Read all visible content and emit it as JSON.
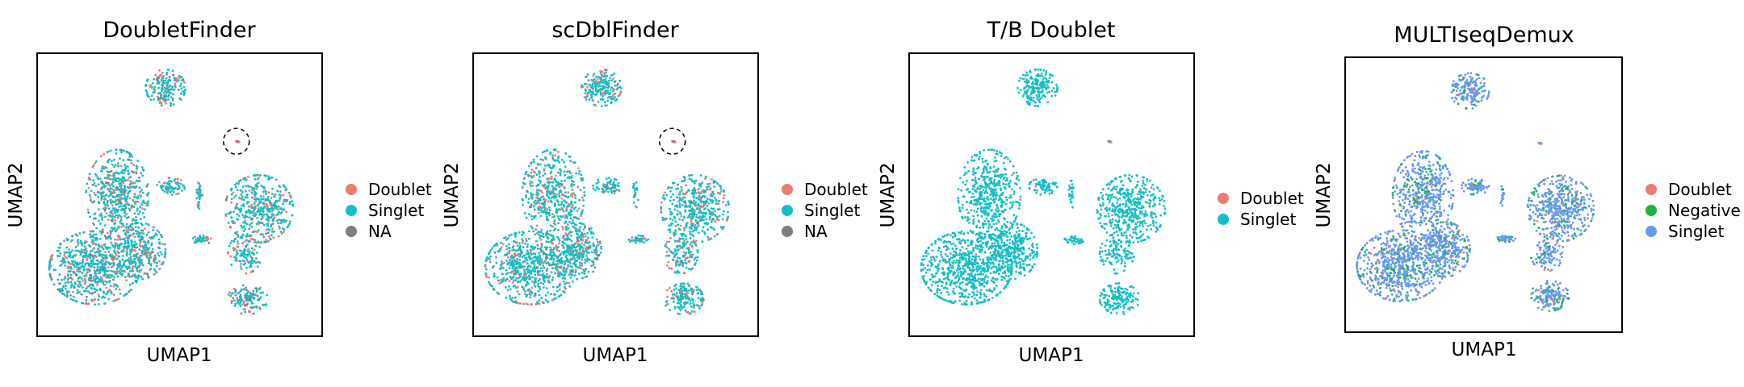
{
  "chart_data": [
    {
      "type": "scatter",
      "title": "DoubletFinder",
      "xlabel": "UMAP1",
      "ylabel": "UMAP2",
      "grid": false,
      "legend_position": "right",
      "highlight_circle": true,
      "series": [
        {
          "name": "Doublet",
          "color": "#f07b72"
        },
        {
          "name": "Singlet",
          "color": "#18bdc6"
        },
        {
          "name": "NA",
          "color": "#7f7f7f"
        }
      ],
      "mix": {
        "Singlet": 0.72,
        "Doublet": 0.2,
        "NA": 0.08
      }
    },
    {
      "type": "scatter",
      "title": "scDblFinder",
      "xlabel": "UMAP1",
      "ylabel": "UMAP2",
      "grid": false,
      "legend_position": "right",
      "highlight_circle": true,
      "series": [
        {
          "name": "Doublet",
          "color": "#f07b72"
        },
        {
          "name": "Singlet",
          "color": "#18bdc6"
        },
        {
          "name": "NA",
          "color": "#7f7f7f"
        }
      ],
      "mix": {
        "Singlet": 0.8,
        "Doublet": 0.16,
        "NA": 0.04
      }
    },
    {
      "type": "scatter",
      "title": "T/B Doublet",
      "xlabel": "UMAP1",
      "ylabel": "UMAP2",
      "grid": false,
      "legend_position": "right",
      "highlight_circle": false,
      "series": [
        {
          "name": "Doublet",
          "color": "#f07b72"
        },
        {
          "name": "Singlet",
          "color": "#18bdc6"
        }
      ],
      "mix": {
        "Singlet": 0.995,
        "Doublet": 0.005
      }
    },
    {
      "type": "scatter",
      "title": "MULTIseqDemux",
      "xlabel": "UMAP1",
      "ylabel": "UMAP2",
      "grid": false,
      "legend_position": "right",
      "highlight_circle": false,
      "series": [
        {
          "name": "Doublet",
          "color": "#f07b72"
        },
        {
          "name": "Negative",
          "color": "#1db34a"
        },
        {
          "name": "Singlet",
          "color": "#6699f2"
        }
      ],
      "mix": {
        "Singlet": 0.8,
        "Negative": 0.17,
        "Doublet": 0.03
      }
    }
  ]
}
